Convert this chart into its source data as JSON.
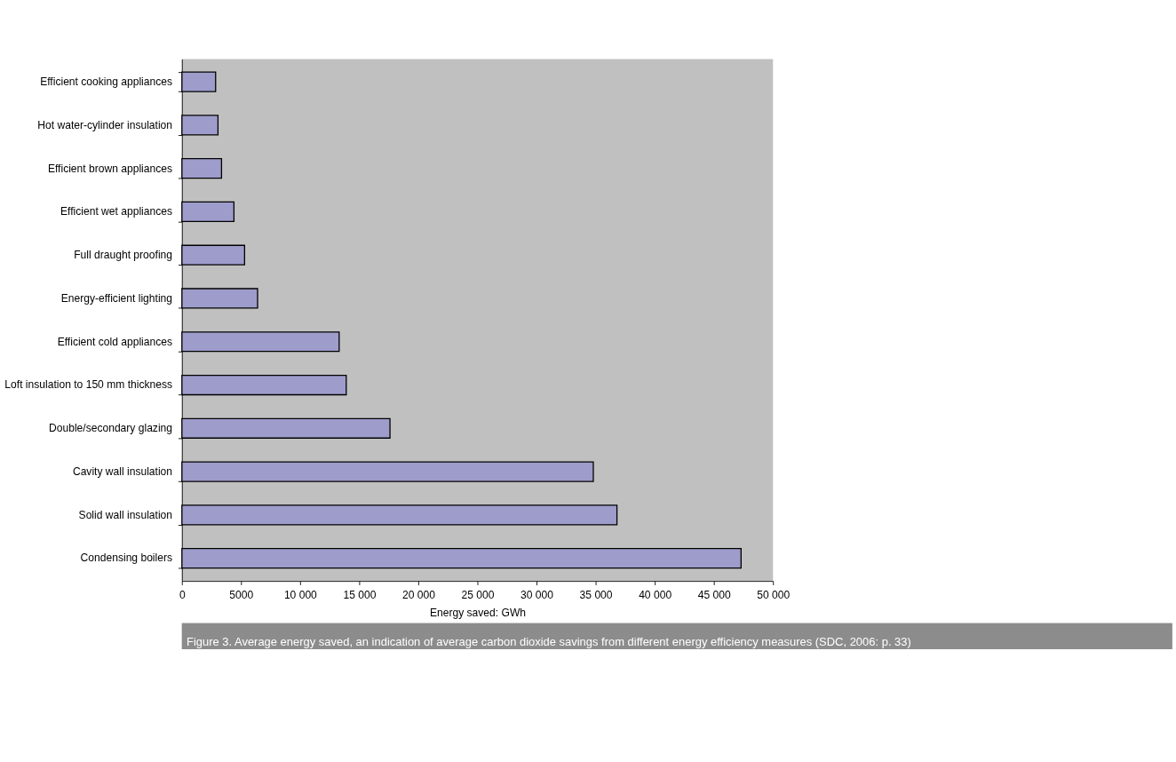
{
  "chart_data": {
    "type": "bar",
    "orientation": "horizontal",
    "categories": [
      "Efficient cooking appliances",
      "Hot water-cylinder insulation",
      "Efficient brown appliances",
      "Efficient wet appliances",
      "Full draught proofing",
      "Energy-efficient lighting",
      "Efficient cold appliances",
      "Loft insulation to 150 mm thickness",
      "Double/secondary glazing",
      "Cavity wall insulation",
      "Solid wall insulation",
      "Condensing boilers"
    ],
    "values": [
      2850,
      3050,
      3350,
      4400,
      5300,
      6400,
      13300,
      13900,
      17600,
      34800,
      36800,
      47300
    ],
    "color": "#9e9ccb",
    "xlim": [
      0,
      50000
    ],
    "xticks": [
      0,
      5000,
      {
        "value": 10000,
        "label": "10 000"
      },
      {
        "value": 15000,
        "label": "15 000"
      },
      {
        "value": 20000,
        "label": "20 000"
      },
      {
        "value": 25000,
        "label": "25 000"
      },
      {
        "value": 30000,
        "label": "30 000"
      },
      {
        "value": 35000,
        "label": "35 000"
      },
      {
        "value": 40000,
        "label": "40 000"
      },
      {
        "value": 45000,
        "label": "45 000"
      },
      {
        "value": 50000,
        "label": "50 000"
      }
    ],
    "xlabel": "Energy saved: GWh",
    "grid": false,
    "annotations": [
      "Figure 3. Average energy saved, an indication of average carbon dioxide savings from different energy efficiency measures (SDC, 2006: p. 33)"
    ]
  }
}
